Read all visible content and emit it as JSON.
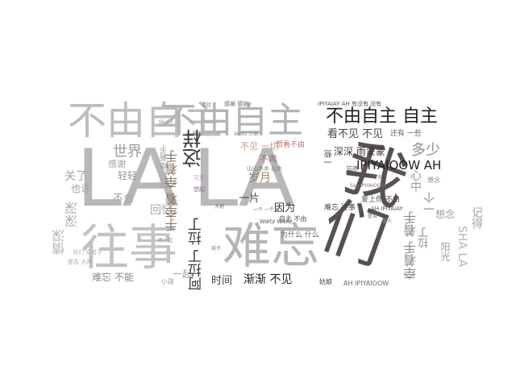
{
  "words": [
    {
      "text": "LA LA",
      "color": "#b8b8b8"
    },
    {
      "text": "我们",
      "color": "#595050"
    },
    {
      "text": "往事",
      "color": "#c2c2c2"
    },
    {
      "text": "难忘",
      "color": "#b5b5b5"
    },
    {
      "text": "不由自主",
      "color": "#bdbdbd"
    },
    {
      "text": "不由自主",
      "color": "#b3b3b3"
    },
    {
      "text": "不由自主 自主",
      "color": "#1f1f1f"
    },
    {
      "text": "这样",
      "color": "#333333"
    },
    {
      "text": "IPIYAIOOW AH",
      "color": "#222222"
    },
    {
      "text": "看不见 不见",
      "color": "#444444"
    },
    {
      "text": "深深 雨蒙蒙",
      "color": "#3a3a3a"
    },
    {
      "text": "还有 一些",
      "color": "#666666"
    },
    {
      "text": "世界",
      "color": "#9a9a9a"
    },
    {
      "text": "多少",
      "color": "#8f8f8f"
    },
    {
      "text": "轻轻",
      "color": "#999999"
    },
    {
      "text": "感谢",
      "color": "#a0a0a0"
    },
    {
      "text": "关了",
      "color": "#a3a3a3"
    },
    {
      "text": "也许",
      "color": "#9e9e9e"
    },
    {
      "text": "不会",
      "color": "#a5a5a5"
    },
    {
      "text": "回忆",
      "color": "#a8a8a8"
    },
    {
      "text": "情深",
      "color": "#b0b0b0"
    },
    {
      "text": "深深",
      "color": "#ababab"
    },
    {
      "text": "我们 牵着手",
      "color": "#a5a5a5"
    },
    {
      "text": "难忘 不能",
      "color": "#888888"
    },
    {
      "text": "一起",
      "color": "#a0a0a0"
    },
    {
      "text": "手牵着 牵着手",
      "color": "#8a7a6a"
    },
    {
      "text": "阿拉丁 拉丁",
      "color": "#333333"
    },
    {
      "text": "时间",
      "color": "#444444"
    },
    {
      "text": "渐渐 不见",
      "color": "#222222"
    },
    {
      "text": "一片",
      "color": "#4a4a4a"
    },
    {
      "text": "岁月",
      "color": "#a08060"
    },
    {
      "text": "不见 一切",
      "color": "#c09a80"
    },
    {
      "text": "不再",
      "color": "#a07070"
    },
    {
      "text": "想看不由",
      "color": "#c07070"
    },
    {
      "text": "因为",
      "color": "#333333"
    },
    {
      "text": "自主 不由",
      "color": "#555555"
    },
    {
      "text": "难忘 往事",
      "color": "#444444"
    },
    {
      "text": "爱上你 不由",
      "color": "#555555"
    },
    {
      "text": "AH IPIYAIAY",
      "color": "#555555"
    },
    {
      "text": "AH IPIYAIOOW",
      "color": "#666666"
    },
    {
      "text": "姑娘",
      "color": "#444444"
    },
    {
      "text": "一些",
      "color": "#444444"
    },
    {
      "text": "牵着手 着手",
      "color": "#8a8a8a"
    },
    {
      "text": "阳光",
      "color": "#9a9a9a"
    },
    {
      "text": "记得",
      "color": "#a0a0a0"
    },
    {
      "text": "SHA LA",
      "color": "#b5b5b5"
    },
    {
      "text": "想念",
      "color": "#9a9a9a"
    },
    {
      "text": "一个",
      "color": "#8a8a8a"
    },
    {
      "text": "心中",
      "color": "#9a9a9a"
    },
    {
      "text": "拉丁",
      "color": "#8a8a8a"
    },
    {
      "text": "为什么 什么",
      "color": "#666666"
    },
    {
      "text": "山山水水 山水",
      "color": "#777777"
    },
    {
      "text": "Waltz Waltz",
      "color": "#555555"
    },
    {
      "text": "IPIYAIAY AH 有没有 没有",
      "color": "#555555"
    },
    {
      "text": "感谢 感谢",
      "color": "#666666"
    },
    {
      "text": "Say IPIYAIOOW",
      "color": "#777777"
    },
    {
      "text": "蓝天",
      "color": "#999999"
    },
    {
      "text": "我们",
      "color": "#aaaaaa"
    },
    {
      "text": "青蛙",
      "color": "#888888"
    },
    {
      "text": "今天",
      "color": "#777777"
    },
    {
      "text": "姑娘",
      "color": "#666666"
    },
    {
      "text": "不一起",
      "color": "#888888"
    },
    {
      "text": "想念",
      "color": "#888888"
    },
    {
      "text": "想起",
      "color": "#8a6a9a"
    },
    {
      "text": "天使",
      "color": "#666666"
    },
    {
      "text": "大地",
      "color": "#666666"
    },
    {
      "text": "是否",
      "color": "#666666"
    },
    {
      "text": "一个 一个人",
      "color": "#666666"
    },
    {
      "text": "可爱",
      "color": "#c090c0"
    },
    {
      "text": "小孩",
      "color": "#999999"
    },
    {
      "text": "孩子",
      "color": "#777777"
    },
    {
      "text": "我们 牵着手",
      "color": "#bbbbbb"
    },
    {
      "text": "是否 大声",
      "color": "#aaaaaa"
    },
    {
      "text": "Waltz 乐曲",
      "color": "#888888"
    }
  ]
}
